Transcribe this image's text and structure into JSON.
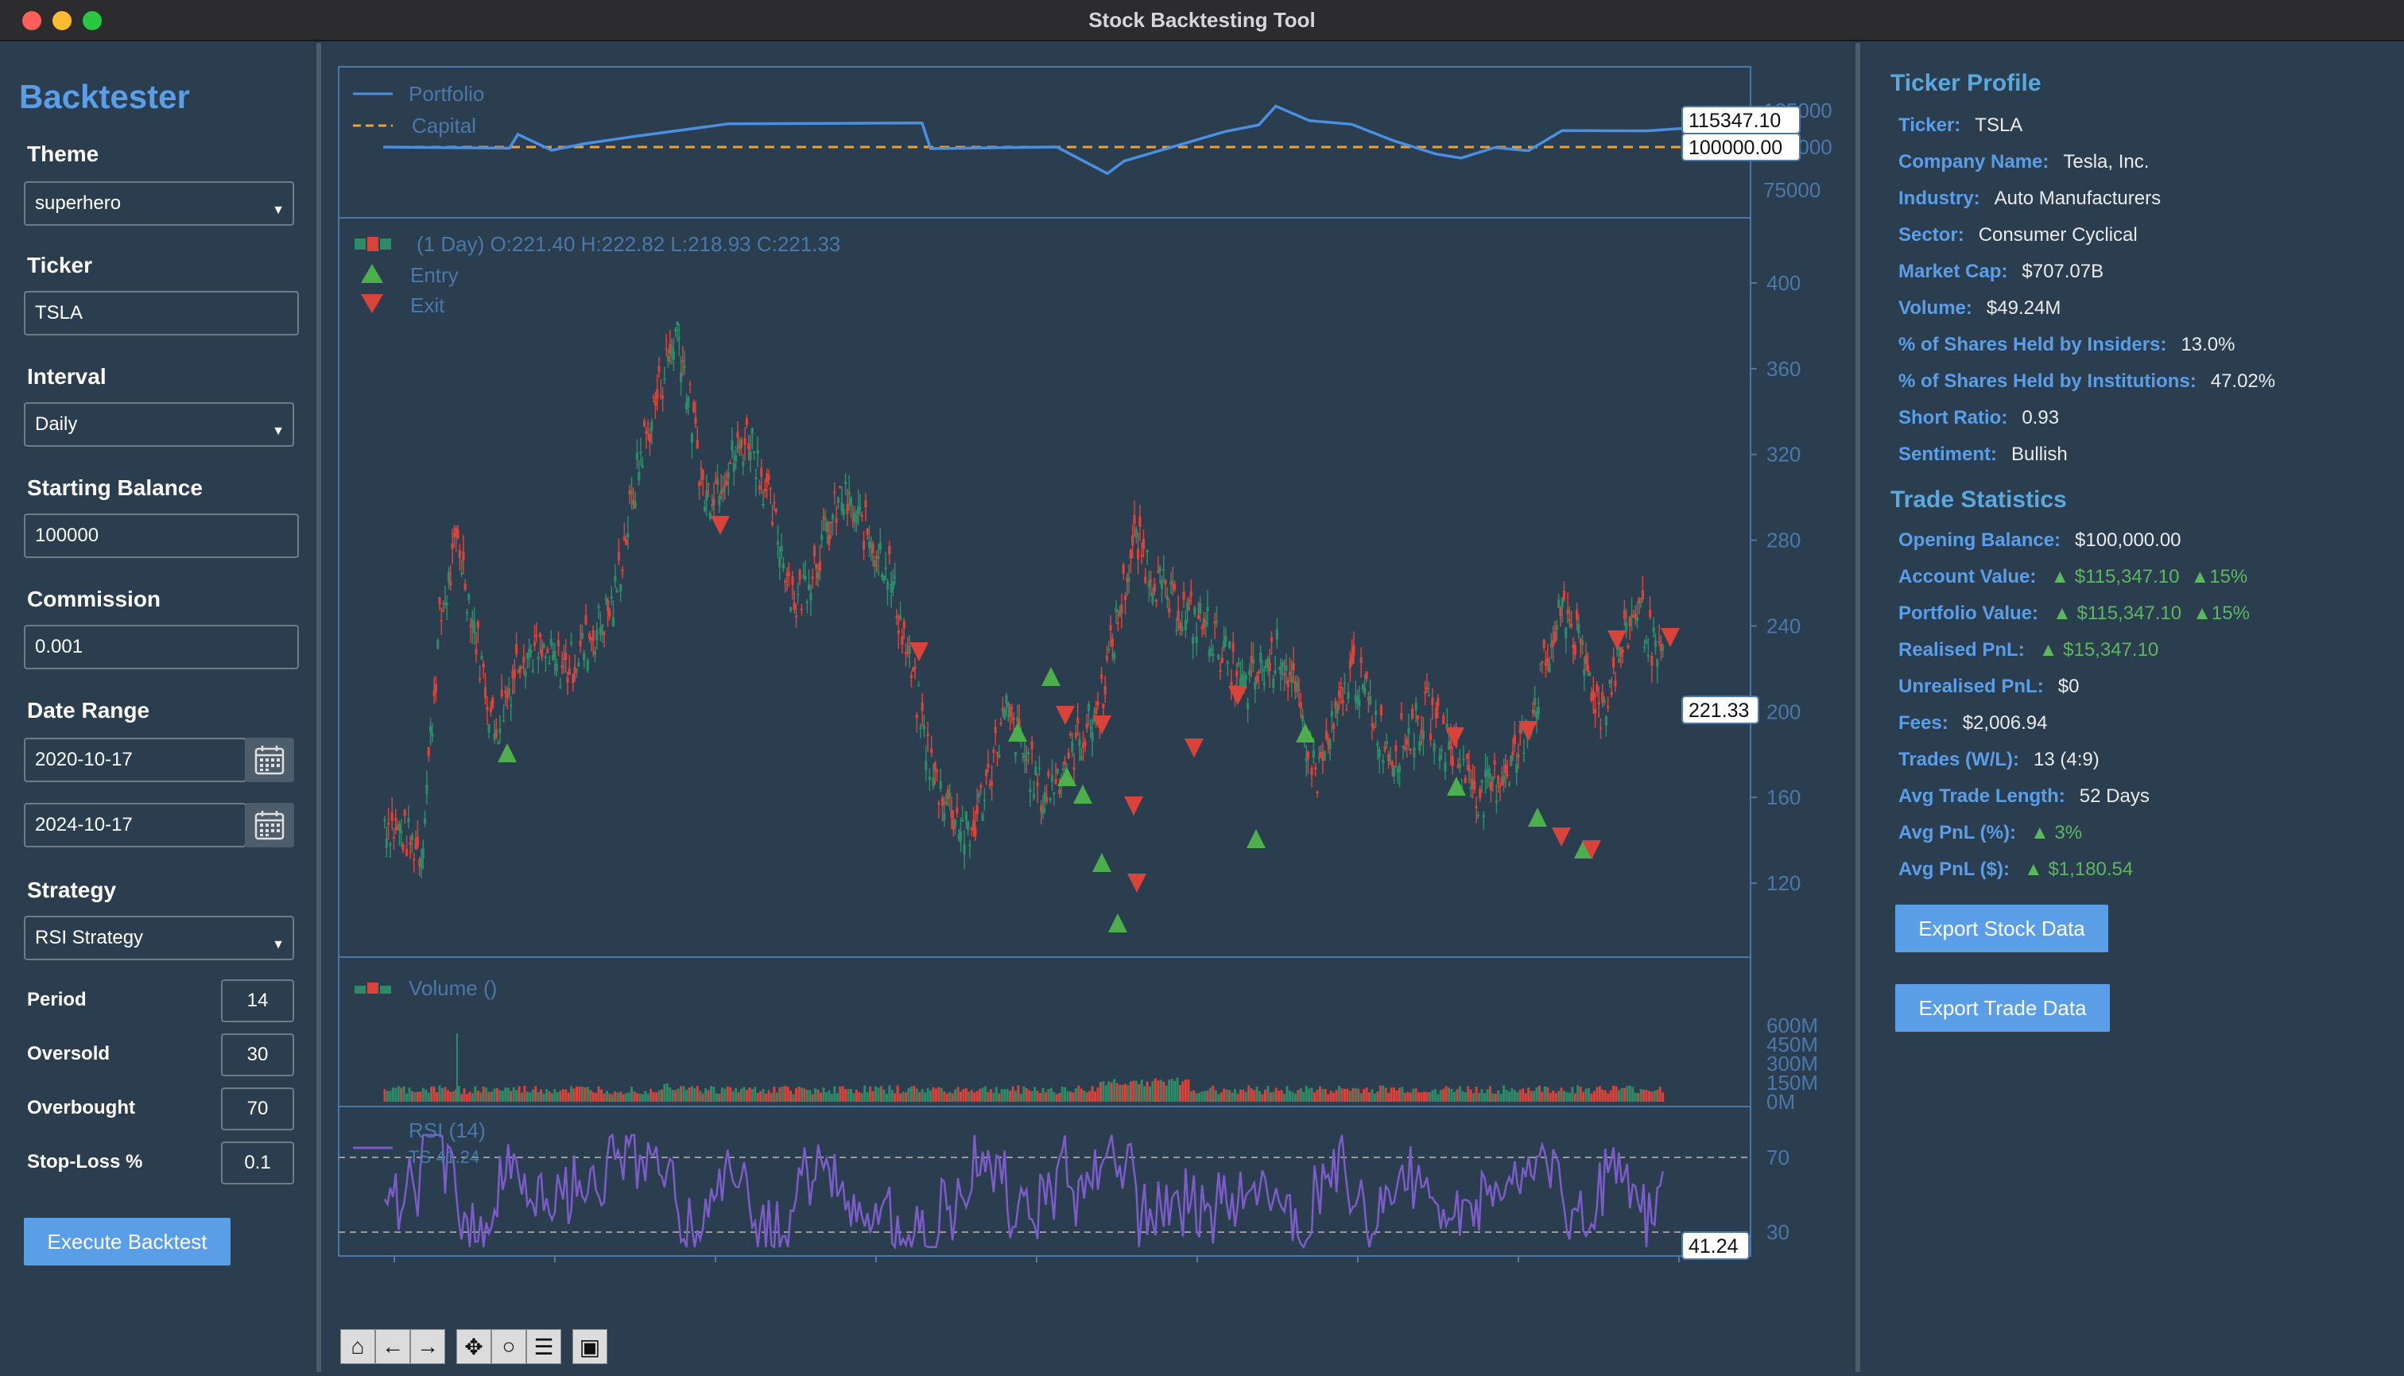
{
  "window": {
    "title": "Stock Backtesting Tool"
  },
  "sidebar": {
    "app_title": "Backtester",
    "theme": {
      "label": "Theme",
      "value": "superhero"
    },
    "ticker": {
      "label": "Ticker",
      "value": "TSLA"
    },
    "interval": {
      "label": "Interval",
      "value": "Daily"
    },
    "starting_balance": {
      "label": "Starting Balance",
      "value": "100000"
    },
    "commission": {
      "label": "Commission",
      "value": "0.001"
    },
    "date_range": {
      "label": "Date Range",
      "start": "2020-10-17",
      "end": "2024-10-17"
    },
    "strategy": {
      "label": "Strategy",
      "value": "RSI Strategy"
    },
    "params": [
      {
        "label": "Period",
        "value": "14"
      },
      {
        "label": "Oversold",
        "value": "30"
      },
      {
        "label": "Overbought",
        "value": "70"
      },
      {
        "label": "Stop-Loss %",
        "value": "0.1"
      }
    ],
    "execute_label": "Execute Backtest"
  },
  "chart": {
    "portfolio_legend": [
      "Portfolio",
      "Capital"
    ],
    "portfolio_ticks": [
      "125000",
      "100000",
      "75000"
    ],
    "portfolio_value_tag": "115347.10",
    "capital_value_tag": "100000.00",
    "ohlc_header": "(1 Day) O:221.40 H:222.82 L:218.93 C:221.33",
    "price_legend": [
      "Entry",
      "Exit"
    ],
    "price_ticks": [
      "400",
      "360",
      "320",
      "280",
      "240",
      "200",
      "160",
      "120"
    ],
    "price_tag": "221.33",
    "volume_legend": "Volume ()",
    "volume_ticks": [
      "600M",
      "450M",
      "300M",
      "150M",
      "0M"
    ],
    "rsi_legend": [
      "RSI (14)",
      "TS 41.24"
    ],
    "rsi_ticks": [
      "70",
      "30"
    ],
    "rsi_tag": "41.24",
    "colors": {
      "up": "#2e8b67",
      "down": "#d9433a",
      "portfolio": "#4a90e2",
      "capital": "#f0a030",
      "rsi": "#7b5cc9",
      "axis": "#4a78a8"
    }
  },
  "toolbar": [
    "home-icon",
    "back-icon",
    "forward-icon",
    "pan-icon",
    "zoom-icon",
    "configure-icon",
    "save-icon"
  ],
  "profile": {
    "title": "Ticker Profile",
    "rows": [
      {
        "k": "Ticker:",
        "v": "TSLA"
      },
      {
        "k": "Company Name:",
        "v": "Tesla, Inc."
      },
      {
        "k": "Industry:",
        "v": "Auto Manufacturers"
      },
      {
        "k": "Sector:",
        "v": "Consumer Cyclical"
      },
      {
        "k": "Market Cap:",
        "v": "$707.07B"
      },
      {
        "k": "Volume:",
        "v": "$49.24M"
      },
      {
        "k": "% of Shares Held by Insiders:",
        "v": "13.0%"
      },
      {
        "k": "% of Shares Held by Institutions:",
        "v": "47.02%"
      },
      {
        "k": "Short Ratio:",
        "v": "0.93"
      },
      {
        "k": "Sentiment:",
        "v": "Bullish"
      }
    ]
  },
  "stats": {
    "title": "Trade Statistics",
    "opening_balance": {
      "k": "Opening Balance:",
      "v": "$100,000.00"
    },
    "account_value": {
      "k": "Account Value:",
      "v": "▲ $115,347.10",
      "v2": "▲15%"
    },
    "portfolio_value": {
      "k": "Portfolio Value:",
      "v": "▲ $115,347.10",
      "v2": "▲15%"
    },
    "realised": {
      "k": "Realised PnL:",
      "v": "▲ $15,347.10"
    },
    "unrealised": {
      "k": "Unrealised PnL:",
      "v": "$0"
    },
    "fees": {
      "k": "Fees:",
      "v": "$2,006.94"
    },
    "trades": {
      "k": "Trades (W/L):",
      "v": "13 (4:9)"
    },
    "avg_len": {
      "k": "Avg Trade Length:",
      "v": "52 Days"
    },
    "avg_pct": {
      "k": "Avg PnL (%):",
      "v": "▲ 3%"
    },
    "avg_usd": {
      "k": "Avg PnL ($):",
      "v": "▲ $1,180.54"
    }
  },
  "export": {
    "stock": "Export Stock Data",
    "trade": "Export Trade Data"
  }
}
